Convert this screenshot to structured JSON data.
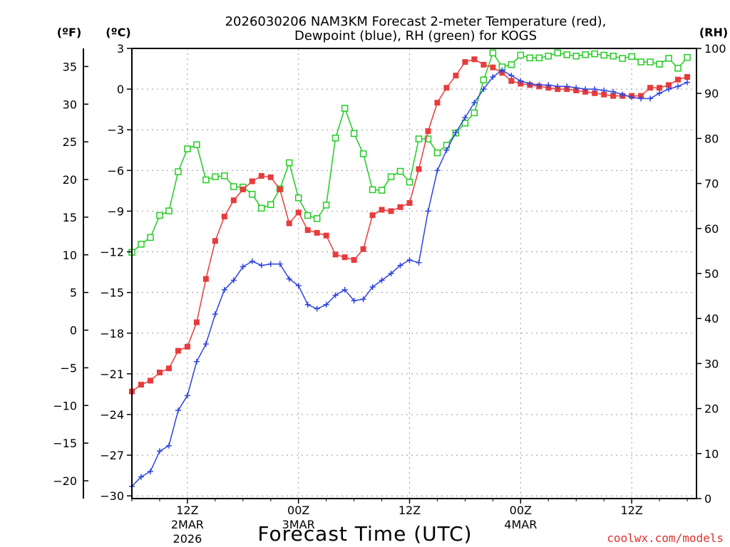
{
  "chart_data": {
    "type": "line",
    "title_line1": "2026030206 NAM3KM Forecast 2-meter Temperature (red),",
    "title_line2": "Dewpoint (blue), RH (green) for KOGS",
    "xlabel": "Forecast Time (UTC)",
    "credit": "coolwx.com/models",
    "units": {
      "fahrenheit": "(ºF)",
      "celsius": "(ºC)",
      "rh": "(RH)"
    },
    "hours_range": [
      0,
      61
    ],
    "celsius_range": [
      -30.2,
      3
    ],
    "rh_range": [
      0,
      100
    ],
    "fahrenheit_ticks": [
      "35",
      "30",
      "25",
      "20",
      "15",
      "10",
      "5",
      "0",
      "−5",
      "−10",
      "−15",
      "−20"
    ],
    "celsius_ticks": [
      "3",
      "0",
      "−3",
      "−6",
      "−9",
      "−12",
      "−15",
      "−18",
      "−21",
      "−24",
      "−27",
      "−30"
    ],
    "rh_ticks": [
      "100",
      "90",
      "80",
      "70",
      "60",
      "50",
      "40",
      "30",
      "20",
      "10",
      "0"
    ],
    "x_ticks": [
      {
        "hour": 6,
        "time": "12Z",
        "date": "2MAR",
        "year": "2026"
      },
      {
        "hour": 18,
        "time": "00Z",
        "date": "3MAR",
        "year": ""
      },
      {
        "hour": 30,
        "time": "12Z",
        "date": "",
        "year": ""
      },
      {
        "hour": 42,
        "time": "00Z",
        "date": "4MAR",
        "year": ""
      },
      {
        "hour": 54,
        "time": "12Z",
        "date": "",
        "year": ""
      }
    ],
    "colors": {
      "temperature": "#e83c3c",
      "dewpoint": "#2e44e0",
      "rh": "#22cc22",
      "grid": "#999999"
    },
    "series": [
      {
        "name": "Temperature (°C)",
        "values": [
          -22.3,
          -21.8,
          -21.5,
          -20.9,
          -20.6,
          -19.3,
          -19.0,
          -17.2,
          -14.0,
          -11.2,
          -9.4,
          -8.2,
          -7.4,
          -6.8,
          -6.4,
          -6.5,
          -7.4,
          -9.9,
          -9.1,
          -10.4,
          -10.6,
          -10.8,
          -12.2,
          -12.4,
          -12.6,
          -11.8,
          -9.3,
          -8.9,
          -9.0,
          -8.7,
          -8.4,
          -5.9,
          -3.1,
          -1.0,
          0.1,
          1.0,
          2.0,
          2.2,
          1.8,
          1.6,
          1.2,
          0.6,
          0.4,
          0.3,
          0.2,
          0.1,
          0.0,
          0.0,
          -0.1,
          -0.2,
          -0.3,
          -0.4,
          -0.5,
          -0.5,
          -0.5,
          -0.5,
          0.1,
          0.1,
          0.3,
          0.7,
          0.9
        ]
      },
      {
        "name": "Dewpoint (°C)",
        "values": [
          -29.3,
          -28.6,
          -28.2,
          -26.7,
          -26.3,
          -23.7,
          -22.6,
          -20.1,
          -18.8,
          -16.6,
          -14.8,
          -14.1,
          -13.1,
          -12.7,
          -13.0,
          -12.9,
          -12.9,
          -14.0,
          -14.5,
          -15.9,
          -16.2,
          -15.9,
          -15.2,
          -14.8,
          -15.6,
          -15.5,
          -14.6,
          -14.1,
          -13.6,
          -13.0,
          -12.6,
          -12.8,
          -9.0,
          -6.0,
          -4.5,
          -3.2,
          -2.1,
          -1.0,
          0.0,
          0.9,
          1.4,
          1.0,
          0.6,
          0.4,
          0.3,
          0.3,
          0.2,
          0.2,
          0.1,
          0.0,
          0.0,
          -0.1,
          -0.2,
          -0.4,
          -0.6,
          -0.7,
          -0.7,
          -0.3,
          0.0,
          0.2,
          0.5
        ]
      },
      {
        "name": "RH (%)",
        "values": [
          54.7,
          56.5,
          58.0,
          62.9,
          63.9,
          72.6,
          77.7,
          78.6,
          70.8,
          71.5,
          71.7,
          69.3,
          69.2,
          67.6,
          64.5,
          65.3,
          68.8,
          74.6,
          66.8,
          62.9,
          62.2,
          65.2,
          80.1,
          86.7,
          81.1,
          76.6,
          68.6,
          68.5,
          71.5,
          72.7,
          70.3,
          79.9,
          79.9,
          76.8,
          78.5,
          81.2,
          83.4,
          85.7,
          93.0,
          99.0,
          95.9,
          96.4,
          98.5,
          97.9,
          97.9,
          98.3,
          99.0,
          98.6,
          98.3,
          98.6,
          98.8,
          98.5,
          98.3,
          97.8,
          98.2,
          97.0,
          97.0,
          96.5,
          97.8,
          95.6,
          98.0
        ]
      }
    ]
  }
}
